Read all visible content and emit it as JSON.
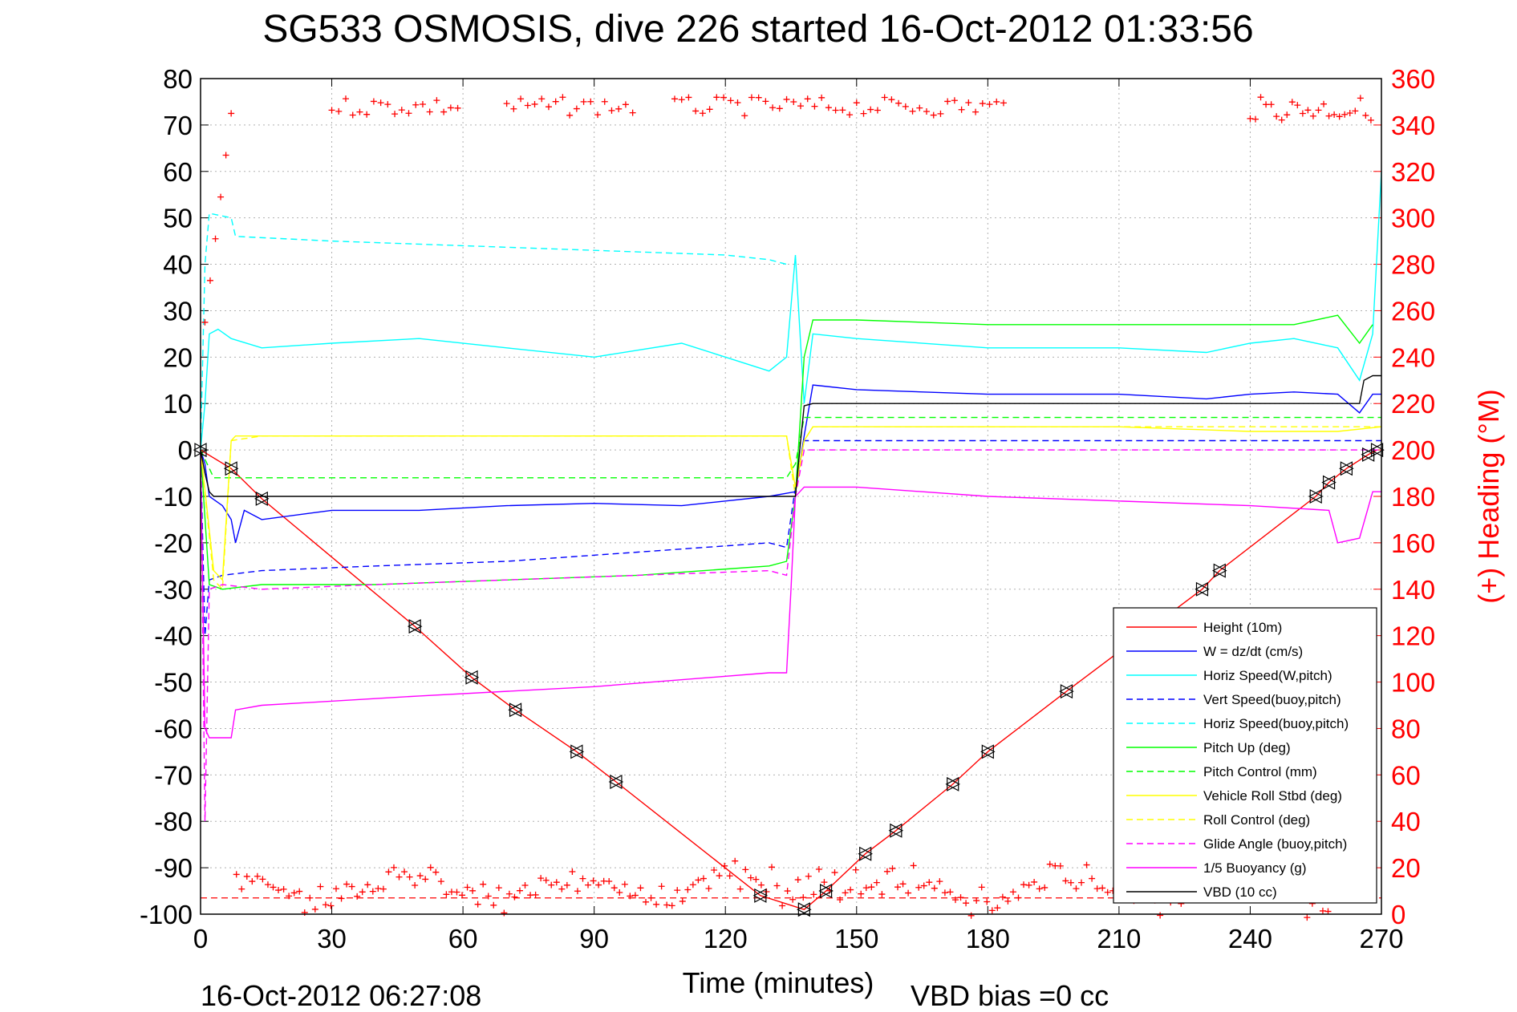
{
  "chart_data": {
    "type": "line",
    "title": "SG533 OSMOSIS, dive 226 started 16-Oct-2012 01:33:56",
    "xlabel": "Time (minutes)",
    "ylabel": "",
    "y2label": "(+) Heading (°M)",
    "xlim": [
      0,
      270
    ],
    "ylim": [
      -100,
      80
    ],
    "y2lim": [
      0,
      360
    ],
    "x_ticks": [
      "0",
      "30",
      "60",
      "90",
      "120",
      "150",
      "180",
      "210",
      "240",
      "270"
    ],
    "y_ticks": [
      "-100",
      "-90",
      "-80",
      "-70",
      "-60",
      "-50",
      "-40",
      "-30",
      "-20",
      "-10",
      "0",
      "10",
      "20",
      "30",
      "40",
      "50",
      "60",
      "70",
      "80"
    ],
    "y2_ticks": [
      "0",
      "20",
      "40",
      "60",
      "80",
      "100",
      "120",
      "140",
      "160",
      "180",
      "200",
      "220",
      "240",
      "260",
      "280",
      "300",
      "320",
      "340",
      "360"
    ],
    "grid": true,
    "legend_position": "bottom-right",
    "footer_left": "16-Oct-2012 06:27:08",
    "footer_right": "VBD bias =0 cc",
    "heading_reference_value": 7,
    "series": [
      {
        "name": "Height (10m)",
        "color": "#ff0000",
        "style": "solid",
        "x": [
          0,
          7,
          14,
          49,
          62,
          72,
          86,
          95,
          128,
          138,
          143,
          152,
          159,
          172,
          180,
          198,
          229,
          233,
          255,
          258,
          262,
          267,
          269
        ],
        "values": [
          0,
          -4,
          -10.5,
          -38,
          -49,
          -56,
          -65,
          -71.5,
          -96,
          -99,
          -95,
          -87,
          -82,
          -72,
          -65,
          -52,
          -30,
          -26,
          -10,
          -7,
          -4,
          -1,
          0
        ]
      },
      {
        "name": "W = dz/dt (cm/s)",
        "color": "#0000ff",
        "style": "solid",
        "x": [
          0,
          1,
          2,
          5,
          7,
          8,
          10,
          14,
          30,
          50,
          70,
          90,
          110,
          130,
          136,
          138,
          140,
          150,
          180,
          210,
          230,
          240,
          250,
          260,
          265,
          268,
          270
        ],
        "values": [
          0,
          -3,
          -10,
          -12,
          -15,
          -20,
          -13,
          -15,
          -13,
          -13,
          -12,
          -11.5,
          -12,
          -10,
          -9,
          3,
          14,
          13,
          12,
          12,
          11,
          12,
          12.5,
          12,
          8,
          12,
          12
        ]
      },
      {
        "name": "Horiz Speed(W,pitch)",
        "color": "#00ffff",
        "style": "solid",
        "x": [
          0,
          1,
          2,
          4,
          7,
          14,
          30,
          50,
          70,
          90,
          110,
          120,
          130,
          134,
          136,
          138,
          140,
          150,
          180,
          210,
          230,
          240,
          250,
          260,
          265,
          268,
          270
        ],
        "values": [
          0,
          10,
          25,
          26,
          24,
          22,
          23,
          24,
          22,
          20,
          23,
          20,
          17,
          20,
          42,
          10,
          25,
          24,
          22,
          22,
          21,
          23,
          24,
          22,
          15,
          25,
          60
        ]
      },
      {
        "name": "Vert Speed(buoy,pitch)",
        "color": "#0000ff",
        "style": "dashed",
        "x": [
          0,
          1,
          2,
          5,
          14,
          40,
          70,
          100,
          130,
          134,
          136,
          138,
          270
        ],
        "values": [
          0,
          -40,
          -28,
          -27,
          -26,
          -25,
          -24,
          -22,
          -20,
          -21,
          -8,
          2,
          2
        ]
      },
      {
        "name": "Horiz Speed(buoy,pitch)",
        "color": "#00ffff",
        "style": "dashed",
        "x": [
          0,
          1,
          2,
          7,
          8,
          30,
          60,
          90,
          120,
          130,
          134
        ],
        "values": [
          0,
          40,
          51,
          50,
          46,
          45,
          44,
          43,
          42,
          41,
          40
        ]
      },
      {
        "name": "Pitch Up (deg)",
        "color": "#00ff00",
        "style": "solid",
        "x": [
          0,
          2,
          5,
          14,
          40,
          70,
          100,
          130,
          134,
          136,
          138,
          140,
          150,
          180,
          210,
          240,
          250,
          260,
          265,
          268
        ],
        "values": [
          0,
          -29,
          -30,
          -29,
          -29,
          -28,
          -27,
          -25,
          -24,
          -10,
          20,
          28,
          28,
          27,
          27,
          27,
          27,
          29,
          23,
          27
        ]
      },
      {
        "name": "Pitch Control (mm)",
        "color": "#00ff00",
        "style": "dashed",
        "x": [
          0,
          3,
          134,
          136,
          138,
          270
        ],
        "values": [
          0,
          -6,
          -6,
          -3,
          7,
          7
        ]
      },
      {
        "name": "Vehicle Roll Stbd (deg)",
        "color": "#ffff00",
        "style": "solid",
        "x": [
          0,
          3,
          5,
          7,
          8,
          14,
          40,
          70,
          100,
          130,
          134,
          136,
          138,
          140,
          180,
          210,
          240,
          260,
          270
        ],
        "values": [
          0,
          -26,
          -28,
          2,
          3,
          3,
          3,
          3,
          3,
          3,
          3,
          -8,
          2,
          5,
          5,
          5,
          4,
          4,
          5
        ]
      },
      {
        "name": "Roll Control (deg)",
        "color": "#ffff00",
        "style": "dashed",
        "x": [
          0,
          3,
          5,
          7,
          14,
          134,
          136,
          138,
          140,
          270
        ],
        "values": [
          0,
          -28,
          -30,
          2,
          3,
          3,
          -10,
          2,
          5,
          5
        ]
      },
      {
        "name": "Glide Angle (buoy,pitch)",
        "color": "#ff00ff",
        "style": "dashed",
        "x": [
          0,
          1,
          2,
          5,
          14,
          40,
          70,
          100,
          130,
          134,
          136,
          138,
          270
        ],
        "values": [
          0,
          -80,
          -30,
          -29,
          -30,
          -29,
          -28,
          -27,
          -26,
          -27,
          -10,
          0,
          0
        ]
      },
      {
        "name": "1/5 Buoyancy (g)",
        "color": "#ff00ff",
        "style": "solid",
        "x": [
          0,
          1,
          2,
          7,
          8,
          14,
          50,
          90,
          130,
          134,
          135,
          136,
          138,
          150,
          180,
          210,
          240,
          258,
          260,
          265,
          268,
          270
        ],
        "values": [
          0,
          -60,
          -62,
          -62,
          -56,
          -55,
          -53,
          -51,
          -48,
          -48,
          -30,
          -10,
          -8,
          -8,
          -10,
          -11,
          -12,
          -13,
          -20,
          -19,
          -9,
          -9
        ]
      },
      {
        "name": "VBD (10 cc)",
        "color": "#000000",
        "style": "solid",
        "x": [
          0,
          1,
          2,
          3,
          136,
          137,
          138,
          140,
          265,
          266,
          268,
          270
        ],
        "values": [
          0,
          -5,
          -9,
          -10,
          -10,
          0,
          9.5,
          10,
          10,
          15,
          16,
          16
        ]
      }
    ]
  }
}
